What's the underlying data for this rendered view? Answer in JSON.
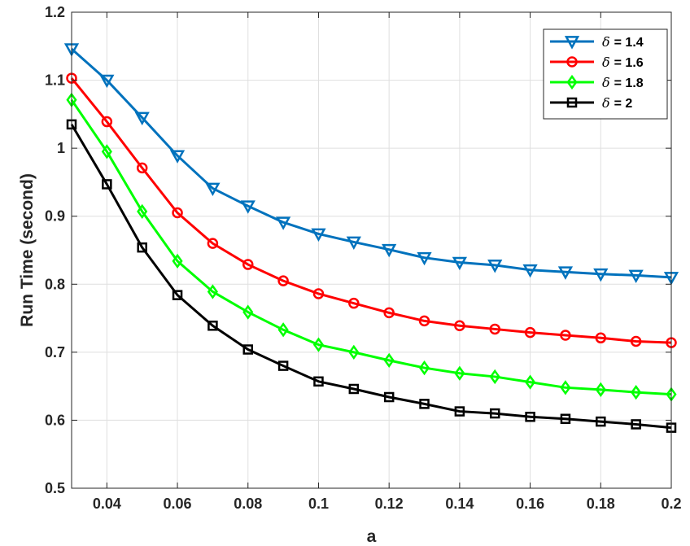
{
  "chart_data": {
    "type": "line",
    "xlabel": "a",
    "ylabel": "Run Time (second)",
    "xlim": [
      0.03,
      0.2
    ],
    "ylim": [
      0.5,
      1.2
    ],
    "grid": true,
    "legend_position": "top-right",
    "x_ticks": [
      "0.04",
      "0.06",
      "0.08",
      "0.1",
      "0.12",
      "0.14",
      "0.16",
      "0.18",
      "0.2"
    ],
    "y_ticks": [
      "0.5",
      "0.6",
      "0.7",
      "0.8",
      "0.9",
      "1",
      "1.1",
      "1.2"
    ],
    "x": [
      0.03,
      0.04,
      0.05,
      0.06,
      0.07,
      0.08,
      0.09,
      0.1,
      0.11,
      0.12,
      0.13,
      0.14,
      0.15,
      0.16,
      0.17,
      0.18,
      0.19,
      0.2
    ],
    "series": [
      {
        "name": "δ = 1.4",
        "legend_symbol": "δ",
        "legend_value": "= 1.4",
        "color": "#0072BD",
        "marker": "triangle-down",
        "values": [
          1.146,
          1.1,
          1.045,
          0.989,
          0.941,
          0.915,
          0.891,
          0.874,
          0.862,
          0.851,
          0.839,
          0.832,
          0.828,
          0.821,
          0.818,
          0.815,
          0.813,
          0.81
        ]
      },
      {
        "name": "δ = 1.6",
        "legend_symbol": "δ",
        "legend_value": "= 1.6",
        "color": "#FF0000",
        "marker": "circle",
        "values": [
          1.103,
          1.039,
          0.971,
          0.905,
          0.86,
          0.829,
          0.805,
          0.786,
          0.772,
          0.758,
          0.746,
          0.739,
          0.734,
          0.729,
          0.725,
          0.721,
          0.716,
          0.714
        ]
      },
      {
        "name": "δ = 1.8",
        "legend_symbol": "δ",
        "legend_value": "= 1.8",
        "color": "#00FF00",
        "marker": "diamond",
        "values": [
          1.071,
          0.995,
          0.907,
          0.834,
          0.789,
          0.759,
          0.733,
          0.711,
          0.7,
          0.688,
          0.677,
          0.669,
          0.664,
          0.656,
          0.648,
          0.645,
          0.641,
          0.638
        ]
      },
      {
        "name": "δ = 2",
        "legend_symbol": "δ",
        "legend_value": "= 2",
        "color": "#000000",
        "marker": "square",
        "values": [
          1.035,
          0.947,
          0.854,
          0.784,
          0.739,
          0.704,
          0.68,
          0.657,
          0.646,
          0.634,
          0.624,
          0.613,
          0.61,
          0.605,
          0.602,
          0.598,
          0.594,
          0.589
        ]
      }
    ]
  }
}
